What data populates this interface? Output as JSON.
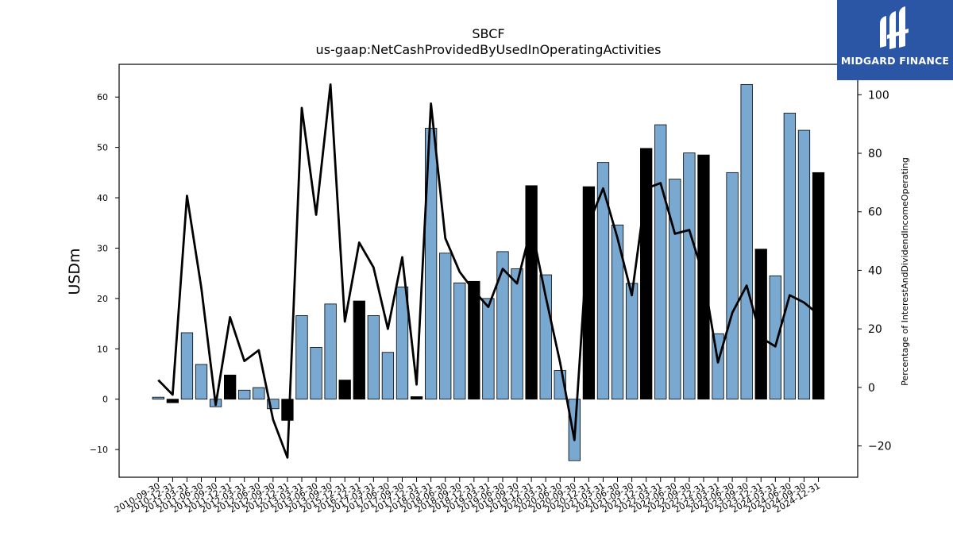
{
  "chart_data": {
    "type": "bar",
    "title": "SBCF",
    "subtitle": "us-gaap:NetCashProvidedByUsedInOperatingActivities",
    "ylabel": "USDm",
    "y2label": "Percentage of InterestAndDividendIncomeOperating",
    "ylim": [
      -15.5,
      66.5
    ],
    "y2lim": [
      -30.7,
      110.4
    ],
    "yticks": [
      -10,
      0,
      10,
      20,
      30,
      40,
      50,
      60
    ],
    "y2ticks": [
      -20,
      0,
      20,
      40,
      60,
      80,
      100
    ],
    "categories": [
      "2010-09-30",
      "2010-12-31",
      "2011-03-31",
      "2011-06-30",
      "2011-09-30",
      "2011-12-31",
      "2012-03-31",
      "2012-06-30",
      "2012-09-30",
      "2012-12-31",
      "2013-03-31",
      "2013-06-30",
      "2013-09-30",
      "2015-12-31",
      "2016-12-31",
      "2017-03-31",
      "2017-06-30",
      "2017-09-30",
      "2017-12-31",
      "2018-03-31",
      "2018-06-30",
      "2018-09-30",
      "2018-12-31",
      "2019-03-31",
      "2019-06-30",
      "2019-09-30",
      "2019-12-31",
      "2020-03-31",
      "2020-06-30",
      "2020-09-30",
      "2020-12-31",
      "2021-03-31",
      "2021-06-30",
      "2021-09-30",
      "2021-12-31",
      "2022-03-31",
      "2022-06-30",
      "2022-09-30",
      "2022-12-31",
      "2023-03-31",
      "2023-06-30",
      "2023-09-30",
      "2023-12-31",
      "2024-03-31",
      "2024-06-30",
      "2024-09-30",
      "2024-12-31"
    ],
    "series": [
      {
        "kind": "bar",
        "axis": "left",
        "values": [
          0.4,
          -0.7,
          13.2,
          6.9,
          -1.5,
          4.8,
          1.8,
          2.3,
          -1.9,
          -4.2,
          16.6,
          10.3,
          18.9,
          3.8,
          19.5,
          16.6,
          9.3,
          22.3,
          0.5,
          53.8,
          29.0,
          23.1,
          23.4,
          20.0,
          29.3,
          25.9,
          42.4,
          24.7,
          5.7,
          -12.2,
          42.2,
          47.0,
          34.6,
          23.0,
          49.8,
          54.5,
          43.7,
          48.9,
          48.5,
          13.0,
          45.0,
          62.5,
          29.8,
          24.5,
          56.8,
          53.4,
          45.0
        ],
        "colors": [
          "#79a9d1",
          "#000000",
          "#79a9d1",
          "#79a9d1",
          "#79a9d1",
          "#000000",
          "#79a9d1",
          "#79a9d1",
          "#79a9d1",
          "#000000",
          "#79a9d1",
          "#79a9d1",
          "#79a9d1",
          "#000000",
          "#000000",
          "#79a9d1",
          "#79a9d1",
          "#79a9d1",
          "#000000",
          "#79a9d1",
          "#79a9d1",
          "#79a9d1",
          "#000000",
          "#79a9d1",
          "#79a9d1",
          "#79a9d1",
          "#000000",
          "#79a9d1",
          "#79a9d1",
          "#79a9d1",
          "#000000",
          "#79a9d1",
          "#79a9d1",
          "#79a9d1",
          "#000000",
          "#79a9d1",
          "#79a9d1",
          "#79a9d1",
          "#000000",
          "#79a9d1",
          "#79a9d1",
          "#79a9d1",
          "#000000",
          "#79a9d1",
          "#79a9d1",
          "#79a9d1",
          "#000000"
        ]
      },
      {
        "kind": "line",
        "axis": "right",
        "color": "#000000",
        "values": [
          2.5,
          -2.5,
          65.5,
          34.0,
          -6.0,
          24.0,
          9.0,
          12.7,
          -11.0,
          -24.0,
          95.5,
          59.0,
          103.5,
          22.5,
          49.5,
          41.0,
          20.0,
          44.5,
          1.0,
          97.0,
          51.0,
          39.5,
          33.0,
          27.5,
          40.5,
          35.5,
          55.0,
          31.0,
          8.5,
          -18.0,
          56.0,
          68.0,
          51.0,
          31.5,
          68.0,
          69.8,
          52.5,
          53.8,
          38.0,
          8.5,
          25.5,
          34.8,
          17.0,
          14.0,
          31.5,
          29.0,
          25.0
        ]
      }
    ],
    "grid": false,
    "legend": "none"
  },
  "logo": {
    "text": "MIDGARD FINANCE"
  }
}
